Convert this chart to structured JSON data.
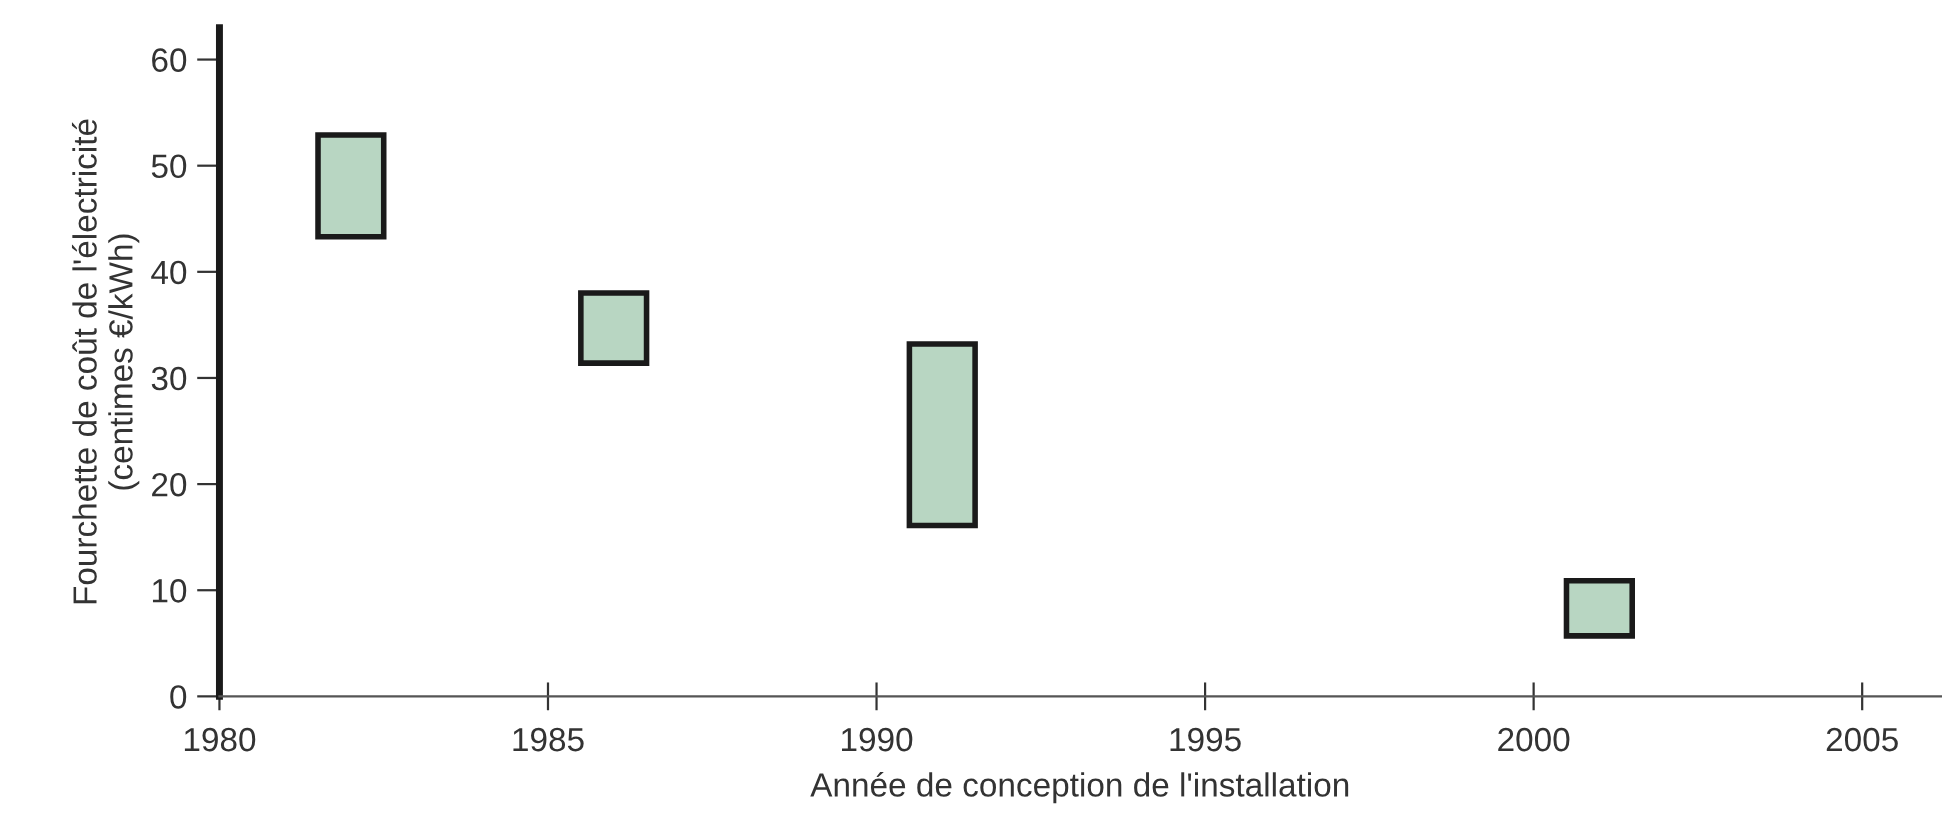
{
  "chart_data": {
    "type": "bar",
    "xlabel": "Année de conception de l'installation",
    "ylabel": "Fourchette de coût de l'électricité\n(centimes €/kWh)",
    "x": [
      1982,
      1986,
      1991,
      2001
    ],
    "base": [
      43.3,
      31.4,
      16.1,
      5.7
    ],
    "values": [
      9.6,
      6.6,
      17.1,
      5.2
    ],
    "color": "#b8d6c2",
    "xlim": [
      1980,
      2006.2
    ],
    "ylim": [
      0,
      63
    ],
    "xticks": [
      1980,
      1985,
      1990,
      1995,
      2000,
      2005
    ],
    "yticks": [
      0,
      10,
      20,
      30,
      40,
      50,
      60
    ],
    "grid": false,
    "legend": false
  }
}
